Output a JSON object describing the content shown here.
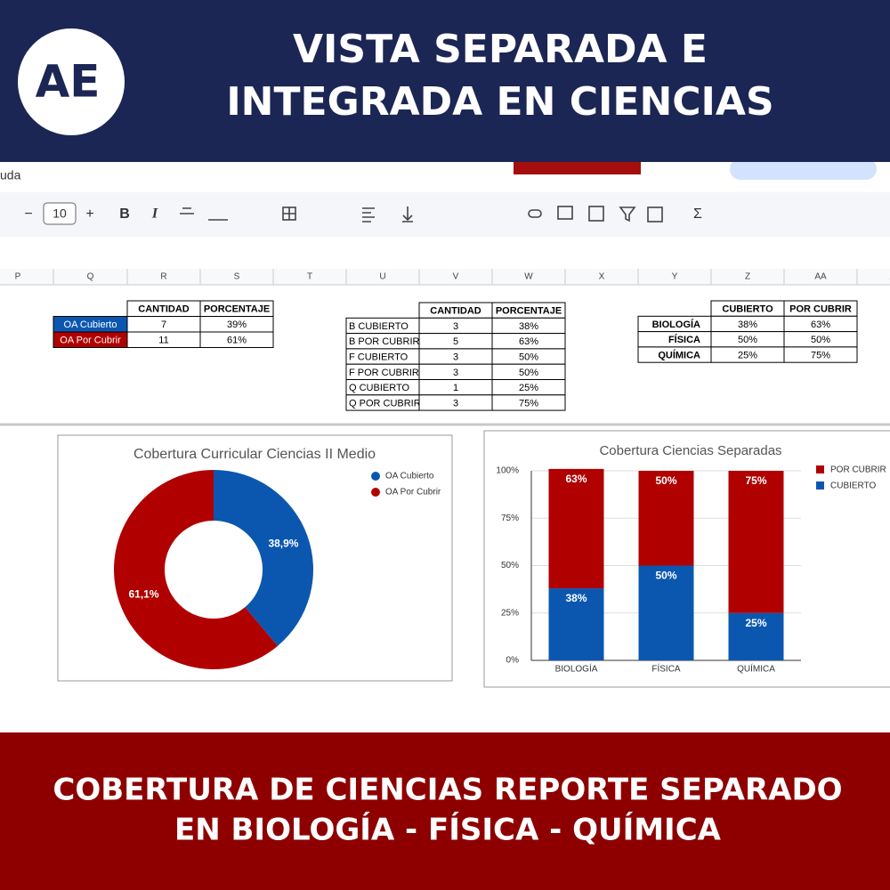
{
  "header": {
    "logo": "AE",
    "title_lines": [
      "VISTA SEPARADA E",
      "INTEGRADA EN CIENCIAS"
    ]
  },
  "menu_fragment": "uda",
  "toolbar": {
    "items": [
      "−",
      "10",
      "+",
      "B",
      "I",
      "Σ"
    ]
  },
  "column_headers": [
    "P",
    "Q",
    "R",
    "S",
    "T",
    "U",
    "V",
    "W",
    "X",
    "Y",
    "Z",
    "AA",
    "A"
  ],
  "tables": [
    {
      "headers": [
        "CANTIDAD",
        "PORCENTAJE"
      ],
      "rows": [
        [
          "OA Cubierto",
          "7",
          "39%"
        ],
        [
          "OA Por Cubrir",
          "11",
          "61%"
        ]
      ]
    },
    {
      "headers": [
        "CANTIDAD",
        "PORCENTAJE"
      ],
      "rows": [
        [
          "B CUBIERTO",
          "3",
          "38%"
        ],
        [
          "B POR CUBRIR",
          "5",
          "63%"
        ],
        [
          "F CUBIERTO",
          "3",
          "50%"
        ],
        [
          "F POR CUBRIR",
          "3",
          "50%"
        ],
        [
          "Q CUBIERTO",
          "1",
          "25%"
        ],
        [
          "Q POR CUBRIR",
          "3",
          "75%"
        ]
      ]
    },
    {
      "headers": [
        "CUBIERTO",
        "POR CUBRIR"
      ],
      "rows": [
        [
          "BIOLOGÍA",
          "38%",
          "63%"
        ],
        [
          "FÍSICA",
          "50%",
          "50%"
        ],
        [
          "QUÍMICA",
          "25%",
          "75%"
        ]
      ]
    }
  ],
  "chart_data": [
    {
      "type": "donut",
      "title": "Cobertura Curricular Ciencias II Medio",
      "categories": [
        "OA Cubierto",
        "OA Por Cubrir"
      ],
      "values": [
        38.9,
        61.1
      ],
      "value_labels": [
        "38,9%",
        "61,1%"
      ],
      "colors": [
        "#0b57b0",
        "#b00000"
      ],
      "legend": "top-right"
    },
    {
      "type": "stacked_bar",
      "title": "Cobertura Ciencias Separadas",
      "categories": [
        "BIOLOGÍA",
        "FÍSICA",
        "QUÍMICA"
      ],
      "series": [
        {
          "name": "POR CUBRIR",
          "color": "#b00000",
          "values": [
            63,
            50,
            75
          ],
          "value_labels": [
            "63%",
            "50%",
            "75%"
          ]
        },
        {
          "name": "CUBIERTO",
          "color": "#0b57b0",
          "values": [
            38,
            50,
            25
          ],
          "value_labels": [
            "38%",
            "50%",
            "25%"
          ]
        }
      ],
      "ylim": [
        0,
        100
      ],
      "yticks": [
        {
          "value": 0,
          "label": "0%"
        },
        {
          "value": 25,
          "label": "25%"
        },
        {
          "value": 50,
          "label": "50%"
        },
        {
          "value": 75,
          "label": "75%"
        },
        {
          "value": 100,
          "label": "100%"
        }
      ],
      "legend": "top-right"
    }
  ],
  "footer": {
    "lines": [
      "COBERTURA DE CIENCIAS REPORTE SEPARADO",
      "EN BIOLOGÍA - FÍSICA - QUÍMICA"
    ]
  }
}
